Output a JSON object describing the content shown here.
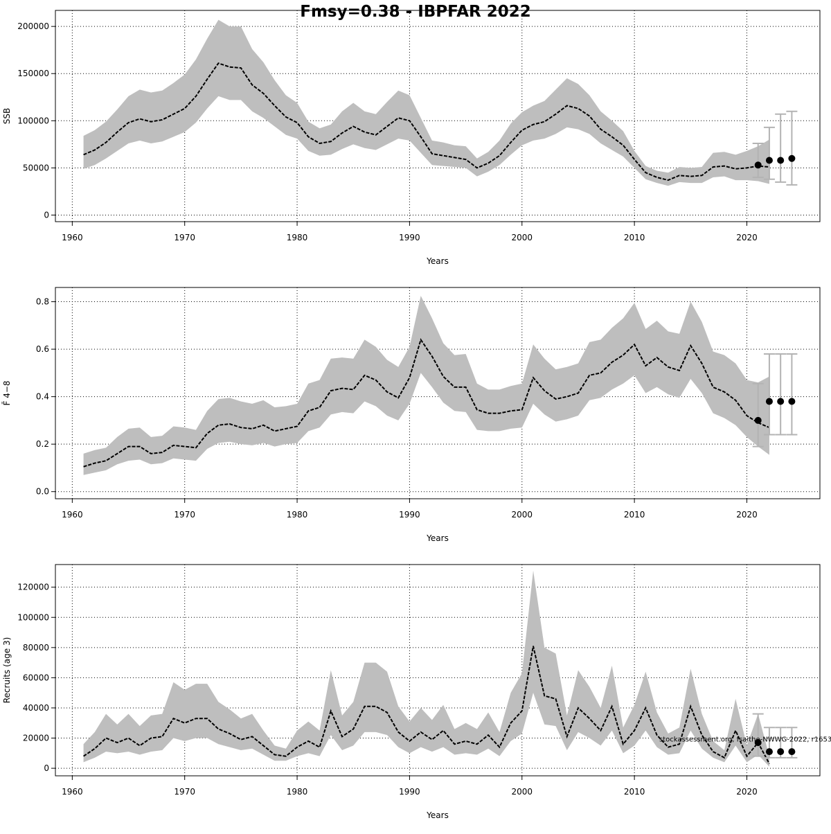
{
  "title": "Fmsy=0.38 - IBPFAR 2022",
  "chart_data": [
    {
      "type": "line",
      "xlabel": "Years",
      "ylabel": "SSB",
      "xlim": [
        1958.5,
        2026.5
      ],
      "ylim": [
        -7000,
        217000
      ],
      "xticks": [
        1960,
        1970,
        1980,
        1990,
        2000,
        2010,
        2020
      ],
      "yticks": [
        0,
        50000,
        100000,
        150000,
        200000
      ],
      "grid": true,
      "x_start": 1961,
      "median": [
        64000,
        69000,
        77000,
        88000,
        98000,
        102000,
        99000,
        101000,
        107000,
        113000,
        126000,
        144000,
        161000,
        157000,
        156000,
        138000,
        129000,
        116000,
        104000,
        98000,
        83000,
        76000,
        78000,
        87000,
        94000,
        88000,
        85000,
        94000,
        103000,
        100000,
        83000,
        65000,
        63000,
        61000,
        59000,
        50000,
        55000,
        63000,
        77000,
        90000,
        96000,
        99000,
        107000,
        116000,
        113000,
        105000,
        91000,
        83000,
        74000,
        59000,
        45000,
        40000,
        37000,
        42000,
        41000,
        42000,
        51000,
        52000,
        49000,
        50000,
        52000,
        51000
      ],
      "lower": [
        49000,
        53000,
        60000,
        68000,
        76000,
        79000,
        76000,
        78000,
        83000,
        88000,
        98000,
        113000,
        126000,
        122000,
        122000,
        110000,
        103000,
        94000,
        85000,
        81000,
        68000,
        63000,
        64000,
        70000,
        75000,
        71000,
        69000,
        75000,
        81000,
        79000,
        66000,
        53000,
        52000,
        51000,
        50000,
        41000,
        46000,
        53000,
        64000,
        74000,
        79000,
        81000,
        86000,
        93000,
        91000,
        86000,
        76000,
        69000,
        62000,
        50000,
        38000,
        34000,
        31000,
        35000,
        34000,
        34000,
        40000,
        41000,
        37000,
        37000,
        36000,
        33000
      ],
      "upper": [
        84000,
        90000,
        99000,
        112000,
        126000,
        133000,
        130000,
        132000,
        140000,
        149000,
        165000,
        187000,
        207000,
        200000,
        200000,
        176000,
        162000,
        143000,
        127000,
        119000,
        99000,
        92000,
        96000,
        110000,
        119000,
        110000,
        107000,
        120000,
        132000,
        127000,
        103000,
        79000,
        77000,
        74000,
        73000,
        60000,
        67000,
        79000,
        97000,
        109000,
        116000,
        121000,
        133000,
        145000,
        139000,
        127000,
        110000,
        100000,
        89000,
        68000,
        52000,
        47000,
        45000,
        51000,
        50000,
        51000,
        66000,
        67000,
        64000,
        68000,
        73000,
        80000
      ],
      "projection": [
        {
          "year": 2021,
          "value": 53000,
          "low": 40000,
          "high": 76000
        },
        {
          "year": 2022,
          "value": 58000,
          "low": 38000,
          "high": 93000
        },
        {
          "year": 2023,
          "value": 58000,
          "low": 35000,
          "high": 107000
        },
        {
          "year": 2024,
          "value": 60000,
          "low": 32000,
          "high": 110000
        }
      ]
    },
    {
      "type": "line",
      "xlabel": "Years",
      "ylabel": "F̄ 4−8",
      "ylim": [
        -0.03,
        0.86
      ],
      "xlim": [
        1958.5,
        2026.5
      ],
      "xticks": [
        1960,
        1970,
        1980,
        1990,
        2000,
        2010,
        2020
      ],
      "yticks": [
        0.0,
        0.2,
        0.4,
        0.6,
        0.8
      ],
      "grid": true,
      "x_start": 1961,
      "median": [
        0.105,
        0.12,
        0.13,
        0.16,
        0.19,
        0.19,
        0.16,
        0.165,
        0.195,
        0.19,
        0.185,
        0.245,
        0.28,
        0.285,
        0.27,
        0.265,
        0.28,
        0.255,
        0.265,
        0.275,
        0.34,
        0.355,
        0.425,
        0.435,
        0.43,
        0.49,
        0.47,
        0.42,
        0.395,
        0.48,
        0.64,
        0.57,
        0.485,
        0.44,
        0.44,
        0.345,
        0.33,
        0.33,
        0.34,
        0.345,
        0.48,
        0.425,
        0.39,
        0.4,
        0.415,
        0.49,
        0.5,
        0.545,
        0.575,
        0.62,
        0.53,
        0.565,
        0.525,
        0.51,
        0.615,
        0.54,
        0.44,
        0.42,
        0.385,
        0.32,
        0.29,
        0.27
      ],
      "lower": [
        0.07,
        0.08,
        0.09,
        0.115,
        0.13,
        0.135,
        0.115,
        0.12,
        0.14,
        0.135,
        0.13,
        0.18,
        0.205,
        0.21,
        0.2,
        0.195,
        0.205,
        0.19,
        0.2,
        0.205,
        0.255,
        0.27,
        0.325,
        0.335,
        0.33,
        0.38,
        0.36,
        0.32,
        0.3,
        0.37,
        0.5,
        0.44,
        0.375,
        0.34,
        0.335,
        0.26,
        0.255,
        0.255,
        0.265,
        0.27,
        0.37,
        0.325,
        0.295,
        0.305,
        0.32,
        0.385,
        0.395,
        0.43,
        0.455,
        0.49,
        0.415,
        0.44,
        0.41,
        0.395,
        0.475,
        0.415,
        0.33,
        0.31,
        0.28,
        0.23,
        0.19,
        0.155
      ],
      "upper": [
        0.16,
        0.175,
        0.185,
        0.23,
        0.265,
        0.27,
        0.23,
        0.235,
        0.275,
        0.27,
        0.26,
        0.34,
        0.39,
        0.395,
        0.38,
        0.37,
        0.385,
        0.355,
        0.36,
        0.37,
        0.455,
        0.47,
        0.56,
        0.565,
        0.56,
        0.64,
        0.61,
        0.555,
        0.525,
        0.61,
        0.825,
        0.73,
        0.625,
        0.575,
        0.58,
        0.455,
        0.43,
        0.43,
        0.445,
        0.455,
        0.62,
        0.56,
        0.515,
        0.525,
        0.54,
        0.63,
        0.64,
        0.69,
        0.73,
        0.795,
        0.685,
        0.72,
        0.675,
        0.665,
        0.8,
        0.715,
        0.59,
        0.575,
        0.54,
        0.47,
        0.46,
        0.485
      ],
      "projection": [
        {
          "year": 2021,
          "value": 0.3,
          "low": 0.19,
          "high": 0.455
        },
        {
          "year": 2022,
          "value": 0.38,
          "low": 0.24,
          "high": 0.58
        },
        {
          "year": 2023,
          "value": 0.38,
          "low": 0.24,
          "high": 0.58
        },
        {
          "year": 2024,
          "value": 0.38,
          "low": 0.24,
          "high": 0.58
        }
      ]
    },
    {
      "type": "line",
      "xlabel": "Years",
      "ylabel": "Recruits (age 3)",
      "ylim": [
        -5000,
        135000
      ],
      "xlim": [
        1958.5,
        2026.5
      ],
      "xticks": [
        1960,
        1970,
        1980,
        1990,
        2000,
        2010,
        2020
      ],
      "yticks": [
        0,
        20000,
        40000,
        60000,
        80000,
        100000,
        120000
      ],
      "grid": true,
      "x_start": 1961,
      "median": [
        8000,
        13000,
        20000,
        17000,
        20000,
        15000,
        20000,
        21000,
        33000,
        30000,
        33000,
        33000,
        26000,
        23000,
        19000,
        21000,
        15000,
        9000,
        8000,
        14000,
        18000,
        14000,
        38000,
        21000,
        26000,
        41000,
        41000,
        37000,
        24000,
        18000,
        24000,
        19000,
        25000,
        16000,
        18000,
        16000,
        22000,
        14000,
        30000,
        38000,
        81000,
        48000,
        46000,
        21000,
        40000,
        33000,
        25000,
        41000,
        16000,
        25000,
        40000,
        22000,
        14000,
        16000,
        41000,
        22000,
        11000,
        7000,
        25000,
        8000,
        17000,
        3000
      ],
      "lower": [
        4000,
        7000,
        11000,
        10000,
        11000,
        9000,
        11000,
        12000,
        20000,
        18000,
        20000,
        20000,
        16000,
        14000,
        12000,
        13000,
        9000,
        5000,
        5000,
        8000,
        10000,
        8000,
        22000,
        12000,
        15000,
        24000,
        24000,
        22000,
        14000,
        10000,
        14000,
        11000,
        14000,
        9000,
        10000,
        9000,
        13000,
        8000,
        18000,
        23000,
        50000,
        29000,
        28000,
        12000,
        24000,
        20000,
        15000,
        25000,
        10000,
        15000,
        25000,
        14000,
        9000,
        10000,
        25000,
        13000,
        7000,
        4000,
        15000,
        4000,
        9000,
        1000
      ],
      "upper": [
        16000,
        24000,
        36000,
        29000,
        36000,
        28000,
        35000,
        36000,
        57000,
        52000,
        56000,
        56000,
        44000,
        39000,
        33000,
        36000,
        25000,
        15000,
        13000,
        25000,
        31000,
        25000,
        65000,
        35000,
        44000,
        70000,
        70000,
        64000,
        41000,
        31000,
        40000,
        32000,
        42000,
        26000,
        30000,
        26000,
        37000,
        24000,
        50000,
        63000,
        131000,
        80000,
        76000,
        35000,
        65000,
        54000,
        40000,
        68000,
        27000,
        42000,
        64000,
        37000,
        23000,
        27000,
        66000,
        36000,
        18000,
        12000,
        46000,
        15000,
        36000,
        8000
      ],
      "projection": [
        {
          "year": 2021,
          "value": 17000,
          "low": 8000,
          "high": 36000
        },
        {
          "year": 2022,
          "value": 11000,
          "low": 7000,
          "high": 27000
        },
        {
          "year": 2023,
          "value": 11000,
          "low": 7000,
          "high": 27000
        },
        {
          "year": 2024,
          "value": 11000,
          "low": 7000,
          "high": 27000
        }
      ],
      "annotation": "stockassessment.org, fsaithe-NWWG-2022, r1653"
    }
  ],
  "colors": {
    "band": "#bebebe",
    "line": "#000000",
    "errorbar": "#b3b3b3"
  }
}
